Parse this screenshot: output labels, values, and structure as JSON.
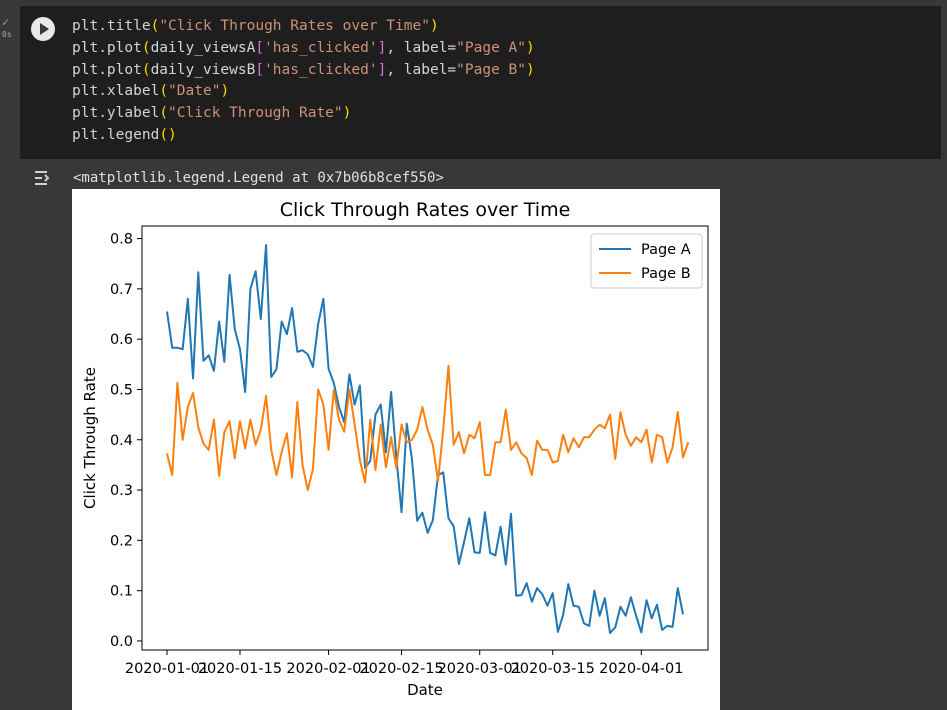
{
  "cell": {
    "status_check": "✓",
    "exec_time": "0s",
    "code_lines": [
      [
        [
          "plt.title",
          ""
        ],
        [
          "(",
          "p"
        ],
        [
          "\"Click Through Rates over Time\"",
          "s"
        ],
        [
          ")",
          "p"
        ]
      ],
      [
        [
          "plt.plot",
          ""
        ],
        [
          "(",
          "p"
        ],
        [
          "daily_viewsA",
          ""
        ],
        [
          "[",
          "b"
        ],
        [
          "'has_clicked'",
          "s"
        ],
        [
          "]",
          "b"
        ],
        [
          ", label=",
          ""
        ],
        [
          "\"Page A\"",
          "s"
        ],
        [
          ")",
          "p"
        ]
      ],
      [
        [
          "plt.plot",
          ""
        ],
        [
          "(",
          "p"
        ],
        [
          "daily_viewsB",
          ""
        ],
        [
          "[",
          "b"
        ],
        [
          "'has_clicked'",
          "s"
        ],
        [
          "]",
          "b"
        ],
        [
          ", label=",
          ""
        ],
        [
          "\"Page B\"",
          "s"
        ],
        [
          ")",
          "p"
        ]
      ],
      [
        [
          "plt.xlabel",
          ""
        ],
        [
          "(",
          "p"
        ],
        [
          "\"Date\"",
          "s"
        ],
        [
          ")",
          "p"
        ]
      ],
      [
        [
          "plt.ylabel",
          ""
        ],
        [
          "(",
          "p"
        ],
        [
          "\"Click Through Rate\"",
          "s"
        ],
        [
          ")",
          "p"
        ]
      ],
      [
        [
          "plt.legend",
          ""
        ],
        [
          "()",
          "p"
        ]
      ]
    ],
    "output_text": "<matplotlib.legend.Legend at 0x7b06b8cef550>"
  },
  "chart_data": {
    "type": "line",
    "title": "Click Through Rates over Time",
    "xlabel": "Date",
    "ylabel": "Click Through Rate",
    "x_start": "2020-01-01",
    "x_ticks": [
      "2020-01-01",
      "2020-01-15",
      "2020-02-01",
      "2020-02-15",
      "2020-03-01",
      "2020-03-15",
      "2020-04-01"
    ],
    "y_ticks": [
      "0.0",
      "0.1",
      "0.2",
      "0.3",
      "0.4",
      "0.5",
      "0.6",
      "0.7",
      "0.8"
    ],
    "ylim": [
      -0.018,
      0.825
    ],
    "legend_position": "top-right",
    "grid": false,
    "series": [
      {
        "name": "Page A",
        "color": "#1f77b4",
        "values": [
          0.655,
          0.583,
          0.583,
          0.58,
          0.68,
          0.522,
          0.733,
          0.557,
          0.568,
          0.537,
          0.635,
          0.555,
          0.728,
          0.62,
          0.58,
          0.495,
          0.7,
          0.735,
          0.64,
          0.787,
          0.525,
          0.54,
          0.635,
          0.61,
          0.662,
          0.575,
          0.578,
          0.57,
          0.545,
          0.63,
          0.68,
          0.541,
          0.513,
          0.465,
          0.435,
          0.53,
          0.47,
          0.508,
          0.344,
          0.358,
          0.45,
          0.47,
          0.375,
          0.495,
          0.365,
          0.256,
          0.432,
          0.362,
          0.239,
          0.255,
          0.215,
          0.24,
          0.33,
          0.335,
          0.244,
          0.228,
          0.153,
          0.197,
          0.244,
          0.176,
          0.175,
          0.256,
          0.175,
          0.17,
          0.227,
          0.152,
          0.253,
          0.09,
          0.091,
          0.115,
          0.078,
          0.105,
          0.093,
          0.07,
          0.095,
          0.018,
          0.052,
          0.113,
          0.07,
          0.068,
          0.035,
          0.03,
          0.1,
          0.05,
          0.085,
          0.016,
          0.027,
          0.068,
          0.05,
          0.087,
          0.05,
          0.017,
          0.081,
          0.045,
          0.072,
          0.022,
          0.03,
          0.028,
          0.105,
          0.053
        ]
      },
      {
        "name": "Page B",
        "color": "#ff7f0e",
        "values": [
          0.373,
          0.33,
          0.513,
          0.4,
          0.465,
          0.493,
          0.425,
          0.392,
          0.38,
          0.44,
          0.328,
          0.415,
          0.437,
          0.363,
          0.437,
          0.383,
          0.44,
          0.39,
          0.42,
          0.487,
          0.38,
          0.33,
          0.375,
          0.413,
          0.325,
          0.475,
          0.35,
          0.3,
          0.342,
          0.5,
          0.47,
          0.38,
          0.499,
          0.44,
          0.416,
          0.5,
          0.43,
          0.36,
          0.315,
          0.44,
          0.34,
          0.43,
          0.345,
          0.405,
          0.344,
          0.43,
          0.395,
          0.4,
          0.42,
          0.465,
          0.42,
          0.39,
          0.318,
          0.42,
          0.547,
          0.39,
          0.415,
          0.373,
          0.41,
          0.403,
          0.435,
          0.33,
          0.33,
          0.395,
          0.395,
          0.46,
          0.38,
          0.395,
          0.373,
          0.364,
          0.33,
          0.398,
          0.38,
          0.38,
          0.355,
          0.358,
          0.41,
          0.375,
          0.403,
          0.385,
          0.405,
          0.405,
          0.42,
          0.43,
          0.423,
          0.45,
          0.362,
          0.455,
          0.41,
          0.388,
          0.405,
          0.395,
          0.42,
          0.355,
          0.41,
          0.405,
          0.355,
          0.385,
          0.455,
          0.365,
          0.395
        ]
      }
    ]
  }
}
